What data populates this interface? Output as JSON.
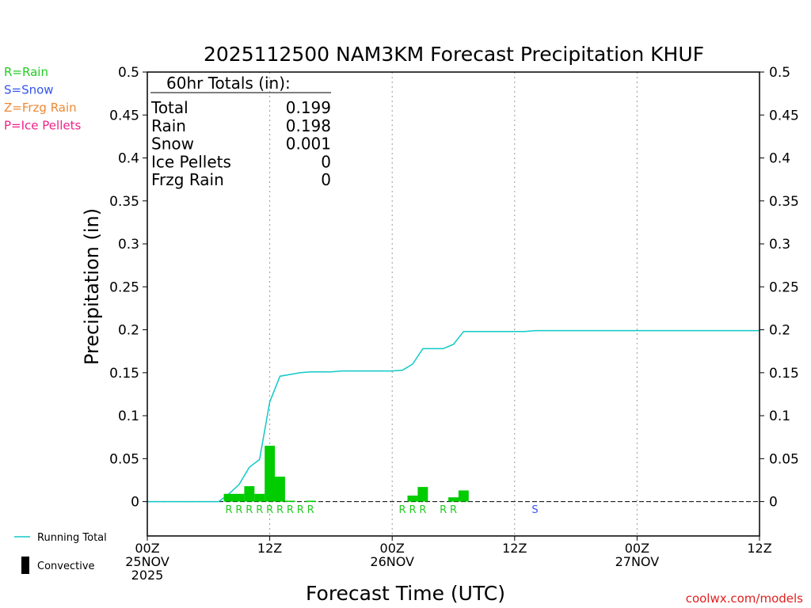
{
  "chart_data": {
    "type": "bar",
    "title": "2025112500 NAM3KM Forecast Precipitation KHUF",
    "xlabel": "Forecast Time (UTC)",
    "ylabel": "Precipitation (in)",
    "ylim": [
      -0.04,
      0.5
    ],
    "xlim_hours": [
      0,
      60
    ],
    "yticks": [
      0,
      0.05,
      0.1,
      0.15,
      0.2,
      0.25,
      0.3,
      0.35,
      0.4,
      0.45,
      0.5
    ],
    "ytick_labels": [
      "0",
      "0.05",
      "0.1",
      "0.15",
      "0.2",
      "0.25",
      "0.3",
      "0.35",
      "0.4",
      "0.45",
      "0.5"
    ],
    "xticks": [
      {
        "hour": 0,
        "lines": [
          "00Z",
          "25NOV",
          "2025"
        ]
      },
      {
        "hour": 12,
        "lines": [
          "12Z"
        ]
      },
      {
        "hour": 24,
        "lines": [
          "00Z",
          "26NOV"
        ]
      },
      {
        "hour": 36,
        "lines": [
          "12Z"
        ]
      },
      {
        "hour": 48,
        "lines": [
          "00Z",
          "27NOV"
        ]
      },
      {
        "hour": 60,
        "lines": [
          "12Z"
        ]
      }
    ],
    "grid_hours": [
      12,
      24,
      36,
      48
    ],
    "type_legend": [
      {
        "label": "R=Rain",
        "color": "#22cc22"
      },
      {
        "label": "S=Snow",
        "color": "#3355ee"
      },
      {
        "label": "Z=Frzg Rain",
        "color": "#ee8833"
      },
      {
        "label": "P=Ice Pellets",
        "color": "#ee2288"
      }
    ],
    "series_legend": [
      {
        "label": "Running Total",
        "kind": "line",
        "color": "#11c8c8"
      },
      {
        "label": "Convective",
        "kind": "bar",
        "color": "#000000"
      }
    ],
    "totals_box": {
      "header": "60hr Totals (in):",
      "rows": [
        {
          "label": "Total",
          "value": "0.199"
        },
        {
          "label": "Rain",
          "value": "0.198"
        },
        {
          "label": "Snow",
          "value": "0.001"
        },
        {
          "label": "Ice Pellets",
          "value": "0"
        },
        {
          "label": "Frzg Rain",
          "value": "0"
        }
      ]
    },
    "bar_color": "#00cc00",
    "bars": [
      {
        "hour": 8,
        "value": 0.009
      },
      {
        "hour": 9,
        "value": 0.009
      },
      {
        "hour": 10,
        "value": 0.018
      },
      {
        "hour": 11,
        "value": 0.009
      },
      {
        "hour": 12,
        "value": 0.065
      },
      {
        "hour": 13,
        "value": 0.029
      },
      {
        "hour": 14,
        "value": 0.001
      },
      {
        "hour": 15,
        "value": 0.0
      },
      {
        "hour": 16,
        "value": 0.001
      },
      {
        "hour": 26,
        "value": 0.007
      },
      {
        "hour": 27,
        "value": 0.017
      },
      {
        "hour": 30,
        "value": 0.005
      },
      {
        "hour": 31,
        "value": 0.013
      }
    ],
    "type_markers": [
      {
        "hour": 8,
        "type": "R"
      },
      {
        "hour": 9,
        "type": "R"
      },
      {
        "hour": 10,
        "type": "R"
      },
      {
        "hour": 11,
        "type": "R"
      },
      {
        "hour": 12,
        "type": "R"
      },
      {
        "hour": 13,
        "type": "R"
      },
      {
        "hour": 14,
        "type": "R"
      },
      {
        "hour": 15,
        "type": "R"
      },
      {
        "hour": 16,
        "type": "R"
      },
      {
        "hour": 25,
        "type": "R"
      },
      {
        "hour": 26,
        "type": "R"
      },
      {
        "hour": 27,
        "type": "R"
      },
      {
        "hour": 29,
        "type": "R"
      },
      {
        "hour": 30,
        "type": "R"
      },
      {
        "hour": 38,
        "type": "S"
      }
    ],
    "running_total": {
      "hours": [
        0,
        1,
        2,
        3,
        4,
        5,
        6,
        7,
        8,
        9,
        10,
        11,
        12,
        13,
        14,
        15,
        16,
        17,
        18,
        19,
        20,
        21,
        22,
        23,
        24,
        25,
        26,
        27,
        28,
        29,
        30,
        31,
        32,
        33,
        34,
        35,
        36,
        37,
        38,
        39,
        40,
        60
      ],
      "values": [
        0,
        0,
        0,
        0,
        0,
        0,
        0,
        0,
        0.009,
        0.02,
        0.04,
        0.049,
        0.116,
        0.146,
        0.148,
        0.15,
        0.151,
        0.151,
        0.151,
        0.152,
        0.152,
        0.152,
        0.152,
        0.152,
        0.152,
        0.153,
        0.16,
        0.178,
        0.178,
        0.178,
        0.183,
        0.198,
        0.198,
        0.198,
        0.198,
        0.198,
        0.198,
        0.198,
        0.199,
        0.199,
        0.199,
        0.199
      ]
    },
    "credit": "coolwx.com/models"
  }
}
